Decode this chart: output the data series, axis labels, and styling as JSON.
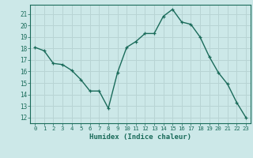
{
  "x": [
    0,
    1,
    2,
    3,
    4,
    5,
    6,
    7,
    8,
    9,
    10,
    11,
    12,
    13,
    14,
    15,
    16,
    17,
    18,
    19,
    20,
    21,
    22,
    23
  ],
  "y": [
    18.1,
    17.8,
    16.7,
    16.6,
    16.1,
    15.3,
    14.3,
    14.3,
    12.8,
    15.9,
    18.1,
    18.6,
    19.3,
    19.3,
    20.8,
    21.4,
    20.3,
    20.1,
    19.0,
    17.3,
    15.9,
    14.9,
    13.3,
    12.0
  ],
  "line_color": "#1a6b5a",
  "marker": "+",
  "bg_color": "#cce8e8",
  "grid_color": "#b8d4d4",
  "xlabel": "Humidex (Indice chaleur)",
  "ylim": [
    11.5,
    21.8
  ],
  "xlim": [
    -0.5,
    23.5
  ],
  "yticks": [
    12,
    13,
    14,
    15,
    16,
    17,
    18,
    19,
    20,
    21
  ],
  "xticks": [
    0,
    1,
    2,
    3,
    4,
    5,
    6,
    7,
    8,
    9,
    10,
    11,
    12,
    13,
    14,
    15,
    16,
    17,
    18,
    19,
    20,
    21,
    22,
    23
  ],
  "axis_color": "#1a6b5a",
  "tick_color": "#1a6b5a",
  "label_color": "#1a6b5a"
}
